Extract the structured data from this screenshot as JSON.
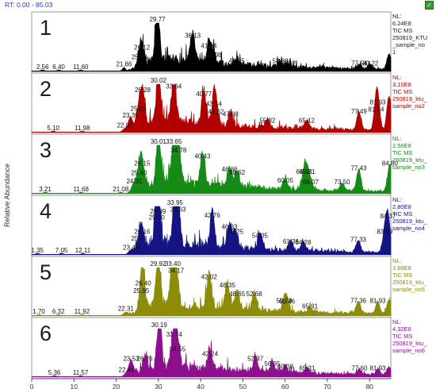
{
  "header": {
    "rt_range": "RT: 0.00 - 85.03",
    "corner_icon": "green-check-icon"
  },
  "colors": {
    "frame": "#9a9a9a",
    "axis": "#444444",
    "text": "#1a1a1a",
    "background": "#ffffff"
  },
  "chart_data": {
    "type": "area",
    "xlabel": "Time (min)",
    "ylabel": "Relative Abundance",
    "xlim": [
      0,
      85.03
    ],
    "ylim": [
      0,
      100
    ],
    "x_ticks": [
      "0",
      "10",
      "20",
      "30",
      "40",
      "50",
      "60",
      "70",
      "80"
    ],
    "grid": false,
    "panels": [
      {
        "panel_number": "1",
        "color": "#000000",
        "nl": "NL:",
        "nl_value": "6.24E8",
        "info_lines": [
          "TIC  MS",
          "250819_KTU",
          "_sample_no",
          "1"
        ],
        "peaks": [
          {
            "rt": 2.56,
            "label": "2.56",
            "h": 2
          },
          {
            "rt": 6.4,
            "label": "6.40",
            "h": 2
          },
          {
            "rt": 11.6,
            "label": "11.60",
            "h": 2
          },
          {
            "rt": 21.86,
            "label": "21.86",
            "h": 7
          },
          {
            "rt": 25.48,
            "label": "25.48",
            "h": 22
          },
          {
            "rt": 26.12,
            "label": "26.12",
            "h": 42
          },
          {
            "rt": 29.77,
            "label": "29.77",
            "h": 100
          },
          {
            "rt": 38.13,
            "label": "38.13",
            "h": 66
          },
          {
            "rt": 41.94,
            "label": "41.94",
            "h": 45
          },
          {
            "rt": 43.08,
            "label": "43.08",
            "h": 26
          },
          {
            "rt": 48.55,
            "label": "48.55",
            "h": 14
          },
          {
            "rt": 58.88,
            "label": "58.88",
            "h": 14
          },
          {
            "rt": 60.62,
            "label": "60.62",
            "h": 9
          },
          {
            "rt": 77.54,
            "label": "77.54",
            "h": 9
          },
          {
            "rt": 80.22,
            "label": "80.22",
            "h": 9
          },
          {
            "rt": 84.6,
            "label": "",
            "h": 30
          }
        ]
      },
      {
        "panel_number": "2",
        "color": "#b00000",
        "nl": "NL:",
        "nl_value": "3.10E8",
        "info_lines": [
          "TIC  MS",
          "250819_ktu_",
          "sample_no2"
        ],
        "peaks": [
          {
            "rt": 5.1,
            "label": "5.10",
            "h": 2
          },
          {
            "rt": 11.98,
            "label": "11.98",
            "h": 2
          },
          {
            "rt": 22.07,
            "label": "22.07",
            "h": 7
          },
          {
            "rt": 23.39,
            "label": "23.39",
            "h": 28
          },
          {
            "rt": 25.25,
            "label": "25.25",
            "h": 42
          },
          {
            "rt": 26.28,
            "label": "26.28",
            "h": 80
          },
          {
            "rt": 30.02,
            "label": "30.02",
            "h": 100
          },
          {
            "rt": 33.64,
            "label": "33.64",
            "h": 88
          },
          {
            "rt": 40.77,
            "label": "40.77",
            "h": 72
          },
          {
            "rt": 43.14,
            "label": "43.14",
            "h": 52
          },
          {
            "rt": 43.62,
            "label": "43.62",
            "h": 35
          },
          {
            "rt": 47.08,
            "label": "47.08",
            "h": 30
          },
          {
            "rt": 55.82,
            "label": "55.82",
            "h": 17
          },
          {
            "rt": 65.12,
            "label": "65.12",
            "h": 17
          },
          {
            "rt": 77.49,
            "label": "77.49",
            "h": 36
          },
          {
            "rt": 81.54,
            "label": "81.54",
            "h": 40
          },
          {
            "rt": 81.93,
            "label": "81.93",
            "h": 55
          },
          {
            "rt": 84.6,
            "label": "",
            "h": 70
          }
        ]
      },
      {
        "panel_number": "3",
        "color": "#168a16",
        "nl": "NL:",
        "nl_value": "2.56E8",
        "info_lines": [
          "TIC  MS",
          "250819_ktu_",
          "sample_no3"
        ],
        "peaks": [
          {
            "rt": 3.21,
            "label": "3.21",
            "h": 2
          },
          {
            "rt": 11.68,
            "label": "11.68",
            "h": 2
          },
          {
            "rt": 21.08,
            "label": "21.08",
            "h": 2
          },
          {
            "rt": 24.31,
            "label": "24.31",
            "h": 18
          },
          {
            "rt": 25.4,
            "label": "25.40",
            "h": 35
          },
          {
            "rt": 26.15,
            "label": "26.15",
            "h": 55
          },
          {
            "rt": 30.01,
            "label": "30.01",
            "h": 100
          },
          {
            "rt": 33.65,
            "label": "33.65",
            "h": 100
          },
          {
            "rt": 34.78,
            "label": "34.78",
            "h": 82
          },
          {
            "rt": 40.43,
            "label": "40.43",
            "h": 70
          },
          {
            "rt": 46.86,
            "label": "46.86",
            "h": 43
          },
          {
            "rt": 48.62,
            "label": "48.62",
            "h": 36
          },
          {
            "rt": 60.05,
            "label": "60.05",
            "h": 20
          },
          {
            "rt": 64.46,
            "label": "64.46",
            "h": 38
          },
          {
            "rt": 65.21,
            "label": "65.21",
            "h": 38
          },
          {
            "rt": 66.07,
            "label": "66.07",
            "h": 16
          },
          {
            "rt": 73.5,
            "label": "73.50",
            "h": 16
          },
          {
            "rt": 77.43,
            "label": "77.43",
            "h": 45
          },
          {
            "rt": 84.8,
            "label": "84.80",
            "h": 55
          }
        ]
      },
      {
        "panel_number": "4",
        "color": "#141482",
        "nl": "NL:",
        "nl_value": "2.80E8",
        "info_lines": [
          "TIC  MS",
          "250819_ktu_",
          "sample_no4"
        ],
        "peaks": [
          {
            "rt": 1.35,
            "label": "1.35",
            "h": 2
          },
          {
            "rt": 7.05,
            "label": "7.05",
            "h": 2
          },
          {
            "rt": 12.11,
            "label": "12.11",
            "h": 2
          },
          {
            "rt": 23.49,
            "label": "23.49",
            "h": 7
          },
          {
            "rt": 25.43,
            "label": "25.43",
            "h": 26
          },
          {
            "rt": 26.16,
            "label": "26.16",
            "h": 40
          },
          {
            "rt": 29.6,
            "label": "29.60",
            "h": 70
          },
          {
            "rt": 29.89,
            "label": "29.89",
            "h": 82
          },
          {
            "rt": 33.95,
            "label": "33.95",
            "h": 100
          },
          {
            "rt": 34.63,
            "label": "34.63",
            "h": 86
          },
          {
            "rt": 42.76,
            "label": "42.76",
            "h": 74
          },
          {
            "rt": 46.83,
            "label": "46.83",
            "h": 50
          },
          {
            "rt": 48.25,
            "label": "48.25",
            "h": 40
          },
          {
            "rt": 54.05,
            "label": "54.05",
            "h": 32
          },
          {
            "rt": 61.36,
            "label": "61.36",
            "h": 20
          },
          {
            "rt": 64.28,
            "label": "64.28",
            "h": 18
          },
          {
            "rt": 77.33,
            "label": "77.33",
            "h": 24
          },
          {
            "rt": 83.59,
            "label": "83.59",
            "h": 40
          },
          {
            "rt": 84.37,
            "label": "84.37",
            "h": 72
          }
        ]
      },
      {
        "panel_number": "5",
        "color": "#8c8c08",
        "nl": "NL:",
        "nl_value": "3.69E8",
        "info_lines": [
          "TIC  MS",
          "250819_ktu_",
          "sample_no5"
        ],
        "peaks": [
          {
            "rt": 1.7,
            "label": "1.70",
            "h": 2
          },
          {
            "rt": 6.32,
            "label": "6.32",
            "h": 2
          },
          {
            "rt": 11.92,
            "label": "11.92",
            "h": 2
          },
          {
            "rt": 22.31,
            "label": "22.31",
            "h": 7
          },
          {
            "rt": 25.95,
            "label": "25.95",
            "h": 44
          },
          {
            "rt": 26.4,
            "label": "26.40",
            "h": 60
          },
          {
            "rt": 29.92,
            "label": "29.92",
            "h": 100
          },
          {
            "rt": 33.4,
            "label": "33.40",
            "h": 100
          },
          {
            "rt": 34.17,
            "label": "34.17",
            "h": 86
          },
          {
            "rt": 42.02,
            "label": "42.02",
            "h": 73
          },
          {
            "rt": 46.35,
            "label": "46.35",
            "h": 56
          },
          {
            "rt": 48.65,
            "label": "48.65",
            "h": 38
          },
          {
            "rt": 52.68,
            "label": "52.68",
            "h": 38
          },
          {
            "rt": 59.78,
            "label": "59.78",
            "h": 24
          },
          {
            "rt": 60.46,
            "label": "60.46",
            "h": 22
          },
          {
            "rt": 65.91,
            "label": "65.91",
            "h": 12
          },
          {
            "rt": 77.36,
            "label": "77.36",
            "h": 24
          },
          {
            "rt": 81.93,
            "label": "81.93",
            "h": 24
          },
          {
            "rt": 84.6,
            "label": "",
            "h": 28
          }
        ]
      },
      {
        "panel_number": "6",
        "color": "#8c0f8c",
        "nl": "NL:",
        "nl_value": "4.32E8",
        "info_lines": [
          "TIC  MS",
          "250819_ktu_",
          "sample_no6"
        ],
        "peaks": [
          {
            "rt": 5.36,
            "label": "5.36",
            "h": 2
          },
          {
            "rt": 11.57,
            "label": "11.57",
            "h": 2
          },
          {
            "rt": 22.46,
            "label": "22.46",
            "h": 7
          },
          {
            "rt": 23.53,
            "label": "23.53",
            "h": 30
          },
          {
            "rt": 26.76,
            "label": "26.76",
            "h": 30
          },
          {
            "rt": 30.19,
            "label": "30.19",
            "h": 100
          },
          {
            "rt": 33.74,
            "label": "33.74",
            "h": 80
          },
          {
            "rt": 34.55,
            "label": "34.55",
            "h": 50
          },
          {
            "rt": 42.24,
            "label": "42.24",
            "h": 40
          },
          {
            "rt": 52.97,
            "label": "52.97",
            "h": 30
          },
          {
            "rt": 56.95,
            "label": "56.95",
            "h": 20
          },
          {
            "rt": 60.08,
            "label": "60.08",
            "h": 14
          },
          {
            "rt": 65.21,
            "label": "65.21",
            "h": 11
          },
          {
            "rt": 77.6,
            "label": "77.60",
            "h": 11
          },
          {
            "rt": 81.93,
            "label": "81.93",
            "h": 11
          },
          {
            "rt": 84.6,
            "label": "",
            "h": 16
          }
        ]
      }
    ]
  }
}
